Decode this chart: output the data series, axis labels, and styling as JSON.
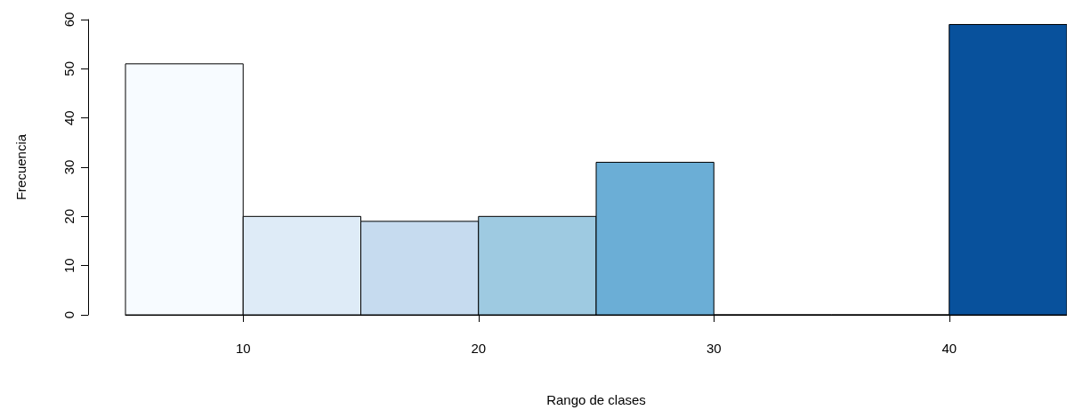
{
  "chart_data": {
    "type": "histogram",
    "xlabel": "Rango de clases",
    "ylabel": "Frecuencia",
    "bins": [
      5,
      10,
      15,
      20,
      25,
      30,
      35,
      40,
      45
    ],
    "values": [
      51,
      20,
      19,
      20,
      31,
      0,
      0,
      59
    ],
    "colors": [
      "#f7fbff",
      "#deebf7",
      "#c6dbef",
      "#9ecae1",
      "#6baed6",
      "#4292c6",
      "#2171b5",
      "#08519c"
    ],
    "xlim": [
      5,
      45
    ],
    "xticks": [
      10,
      20,
      30,
      40
    ],
    "ylim": [
      0,
      60
    ],
    "yticks": [
      0,
      10,
      20,
      30,
      40,
      50,
      60
    ],
    "grid": false
  }
}
